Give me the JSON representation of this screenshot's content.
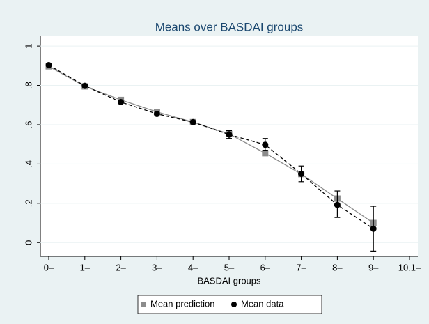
{
  "chart_data": {
    "type": "line",
    "title": "Means over BASDAI groups",
    "x_label": "BASDAI groups",
    "categories": [
      "0–",
      "1–",
      "2–",
      "3–",
      "4–",
      "5–",
      "6–",
      "7–",
      "8–",
      "9–",
      "10.1–"
    ],
    "series": [
      {
        "name": "Mean prediction",
        "color": "#8c8c8c",
        "marker": "square",
        "dash": false,
        "values": [
          0.897,
          0.795,
          0.726,
          0.665,
          0.613,
          0.553,
          0.455,
          0.349,
          0.224,
          0.1,
          null
        ]
      },
      {
        "name": "Mean data",
        "color": "#000000",
        "marker": "circle",
        "dash": true,
        "values": [
          0.903,
          0.798,
          0.715,
          0.655,
          0.613,
          0.55,
          0.498,
          0.35,
          0.192,
          0.071,
          null
        ],
        "lower": [
          null,
          null,
          null,
          null,
          null,
          0.53,
          0.47,
          0.31,
          0.128,
          -0.043,
          null
        ],
        "upper": [
          null,
          null,
          null,
          null,
          null,
          0.57,
          0.53,
          0.39,
          0.263,
          0.185,
          null
        ]
      }
    ],
    "ylim": [
      -0.07,
      1.05
    ],
    "yticks": [
      0,
      {
        "value": 0.2,
        "label": ".2"
      },
      {
        "value": 0.4,
        "label": ".4"
      },
      {
        "value": 0.6,
        "label": ".6"
      },
      {
        "value": 0.8,
        "label": ".8"
      },
      1
    ],
    "grid": true,
    "legend": "bottom"
  }
}
